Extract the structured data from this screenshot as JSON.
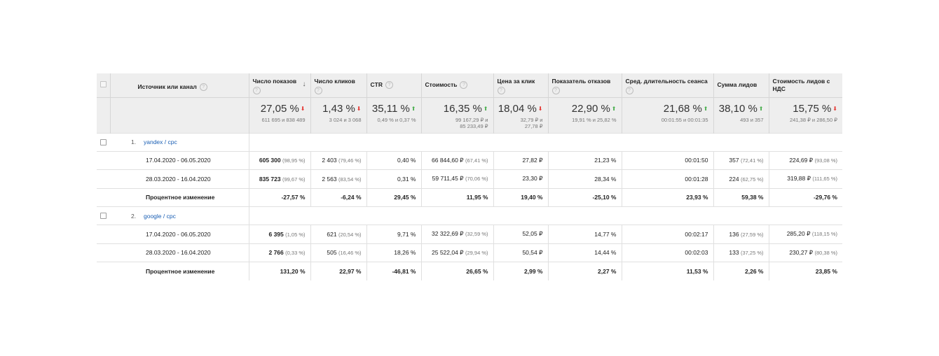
{
  "columns": [
    {
      "label": "Источник или канал"
    },
    {
      "label": "Число показов"
    },
    {
      "label": "Число кликов"
    },
    {
      "label": "CTR"
    },
    {
      "label": "Стоимость"
    },
    {
      "label": "Цена за клик"
    },
    {
      "label": "Показатель отказов"
    },
    {
      "label": "Сред. длительность сеанса"
    },
    {
      "label": "Сумма лидов"
    },
    {
      "label": "Стоимость лидов с НДС"
    }
  ],
  "help_glyph": "?",
  "sort_glyph": "↓",
  "summary": [
    {
      "value": "27,05 %",
      "trend": "down",
      "compare": "611 695 и 838 489"
    },
    {
      "value": "1,43 %",
      "trend": "down",
      "compare": "3 024 и 3 068"
    },
    {
      "value": "35,11 %",
      "trend": "up",
      "compare": "0,49 % и 0,37 %"
    },
    {
      "value": "16,35 %",
      "trend": "up",
      "compare": "99 167,29 ₽ и 85 233,49 ₽"
    },
    {
      "value": "18,04 %",
      "trend": "down",
      "compare": "32,79 ₽ и 27,78 ₽"
    },
    {
      "value": "22,90 %",
      "trend": "up",
      "compare": "19,91 % и 25,82 %"
    },
    {
      "value": "21,68 %",
      "trend": "up",
      "compare": "00:01:55 и 00:01:35"
    },
    {
      "value": "38,10 %",
      "trend": "up",
      "compare": "493 и 357"
    },
    {
      "value": "15,75 %",
      "trend": "down",
      "compare": "241,38 ₽ и 286,50 ₽"
    }
  ],
  "trend_glyphs": {
    "up": "⬆",
    "down": "⬇"
  },
  "trend_colors": {
    "up": "#4caf50",
    "down": "#e53935"
  },
  "link_color": "#1a5fb4",
  "groups": [
    {
      "index": "1.",
      "name": "yandex / cpc",
      "rows": [
        {
          "label": "17.04.2020 - 06.05.2020",
          "impr": "605 300",
          "impr_pct": "(98,95 %)",
          "clicks": "2 403",
          "clicks_pct": "(79,46 %)",
          "ctr": "0,40 %",
          "cost": "66 844,60 ₽",
          "cost_pct": "(67,41 %)",
          "cpc": "27,82 ₽",
          "bounce": "21,23 %",
          "duration": "00:01:50",
          "leads": "357",
          "leads_pct": "(72,41 %)",
          "leadcost": "224,69 ₽",
          "leadcost_pct": "(93,08 %)"
        },
        {
          "label": "28.03.2020 - 16.04.2020",
          "impr": "835 723",
          "impr_pct": "(99,67 %)",
          "clicks": "2 563",
          "clicks_pct": "(83,54 %)",
          "ctr": "0,31 %",
          "cost": "59 711,45 ₽",
          "cost_pct": "(70,06 %)",
          "cpc": "23,30 ₽",
          "bounce": "28,34 %",
          "duration": "00:01:28",
          "leads": "224",
          "leads_pct": "(62,75 %)",
          "leadcost": "319,88 ₽",
          "leadcost_pct": "(111,65 %)"
        }
      ],
      "change": {
        "label": "Процентное изменение",
        "values": [
          "-27,57 %",
          "-6,24 %",
          "29,45 %",
          "11,95 %",
          "19,40 %",
          "-25,10 %",
          "23,93 %",
          "59,38 %",
          "-29,76 %"
        ]
      }
    },
    {
      "index": "2.",
      "name": "google / cpc",
      "rows": [
        {
          "label": "17.04.2020 - 06.05.2020",
          "impr": "6 395",
          "impr_pct": "(1,05 %)",
          "clicks": "621",
          "clicks_pct": "(20,54 %)",
          "ctr": "9,71 %",
          "cost": "32 322,69 ₽",
          "cost_pct": "(32,59 %)",
          "cpc": "52,05 ₽",
          "bounce": "14,77 %",
          "duration": "00:02:17",
          "leads": "136",
          "leads_pct": "(27,59 %)",
          "leadcost": "285,20 ₽",
          "leadcost_pct": "(118,15 %)"
        },
        {
          "label": "28.03.2020 - 16.04.2020",
          "impr": "2 766",
          "impr_pct": "(0,33 %)",
          "clicks": "505",
          "clicks_pct": "(16,46 %)",
          "ctr": "18,26 %",
          "cost": "25 522,04 ₽",
          "cost_pct": "(29,94 %)",
          "cpc": "50,54 ₽",
          "bounce": "14,44 %",
          "duration": "00:02:03",
          "leads": "133",
          "leads_pct": "(37,25 %)",
          "leadcost": "230,27 ₽",
          "leadcost_pct": "(80,38 %)"
        }
      ],
      "change": {
        "label": "Процентное изменение",
        "values": [
          "131,20 %",
          "22,97 %",
          "-46,81 %",
          "26,65 %",
          "2,99 %",
          "2,27 %",
          "11,53 %",
          "2,26 %",
          "23,85 %"
        ]
      }
    }
  ]
}
